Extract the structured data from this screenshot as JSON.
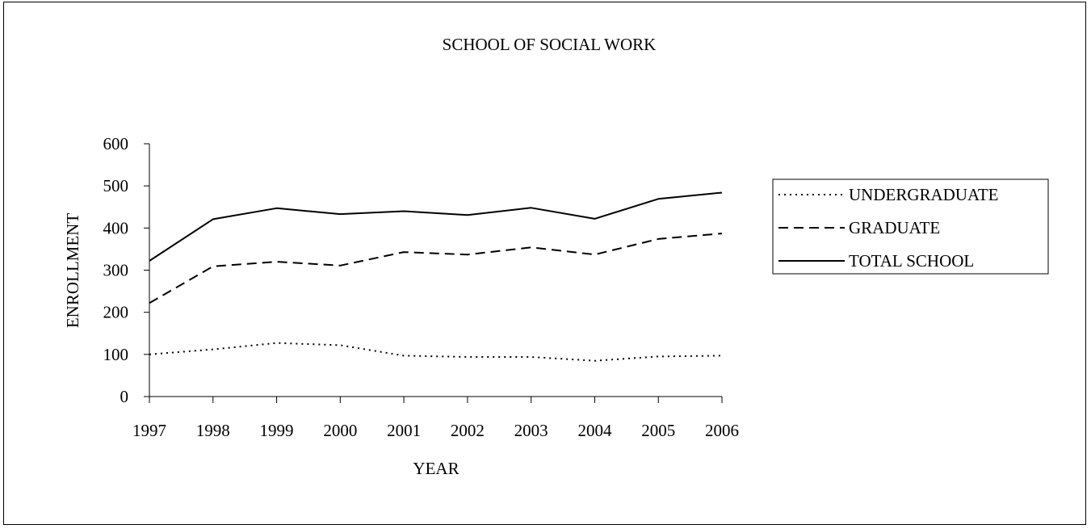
{
  "chart_data": {
    "type": "line",
    "title": "SCHOOL OF SOCIAL WORK",
    "xlabel": "YEAR",
    "ylabel": "ENROLLMENT",
    "x": [
      "1997",
      "1998",
      "1999",
      "2000",
      "2001",
      "2002",
      "2003",
      "2004",
      "2005",
      "2006"
    ],
    "ylim": [
      0,
      600
    ],
    "yticks": [
      "0",
      "100",
      "200",
      "300",
      "400",
      "500",
      "600"
    ],
    "grid": false,
    "legend_position": "right",
    "series": [
      {
        "name": "UNDERGRADUATE",
        "style": "dotted",
        "color": "#000000",
        "values": [
          100,
          112,
          127,
          122,
          97,
          94,
          94,
          85,
          95,
          97
        ]
      },
      {
        "name": "GRADUATE",
        "style": "dashed",
        "color": "#000000",
        "values": [
          222,
          309,
          320,
          311,
          343,
          337,
          354,
          337,
          374,
          387
        ]
      },
      {
        "name": "TOTAL SCHOOL",
        "style": "solid",
        "color": "#000000",
        "values": [
          322,
          421,
          447,
          433,
          440,
          431,
          448,
          422,
          469,
          484
        ]
      }
    ]
  }
}
